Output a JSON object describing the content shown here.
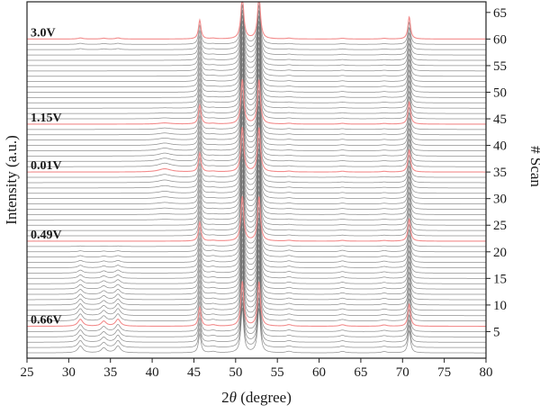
{
  "chart_data": {
    "type": "line",
    "title": "",
    "xlabel_prefix": "2",
    "xlabel_symbol": "θ",
    "xlabel_suffix": " (degree)",
    "ylabel": "Intensity (a.u.)",
    "y2label": "# Scan",
    "xlim": [
      25,
      80
    ],
    "y2lim": [
      0,
      67
    ],
    "xticks": [
      25,
      30,
      35,
      40,
      45,
      50,
      55,
      60,
      65,
      70,
      75,
      80
    ],
    "y2ticks": [
      5,
      10,
      15,
      20,
      25,
      30,
      35,
      40,
      45,
      50,
      55,
      60,
      65
    ],
    "scan_count": 60,
    "series_color": "#555555",
    "highlight_color": "#f28b8b",
    "highlighted_scans": [
      {
        "scan": 6,
        "label": "0.66V"
      },
      {
        "scan": 22,
        "label": "0.49V"
      },
      {
        "scan": 35,
        "label": "0.01V"
      },
      {
        "scan": 44,
        "label": "1.15V"
      },
      {
        "scan": 60,
        "label": "3.0V"
      }
    ],
    "peaks": [
      {
        "x": 45.7,
        "height": 38,
        "width": 0.18,
        "present_in_all_scans": true
      },
      {
        "x": 50.8,
        "height": 90,
        "width": 0.2,
        "present_in_all_scans": true
      },
      {
        "x": 52.8,
        "height": 90,
        "width": 0.2,
        "present_in_all_scans": true
      },
      {
        "x": 70.8,
        "height": 45,
        "width": 0.18,
        "present_in_all_scans": true
      },
      {
        "x": 31.4,
        "height": 14,
        "width": 0.35,
        "present_in_all_scans": false
      },
      {
        "x": 34.2,
        "height": 10,
        "width": 0.35,
        "present_in_all_scans": false
      },
      {
        "x": 35.9,
        "height": 14,
        "width": 0.35,
        "present_in_all_scans": false
      },
      {
        "x": 41.5,
        "height": 7,
        "width": 0.9,
        "present_in_all_scans": false
      }
    ]
  }
}
